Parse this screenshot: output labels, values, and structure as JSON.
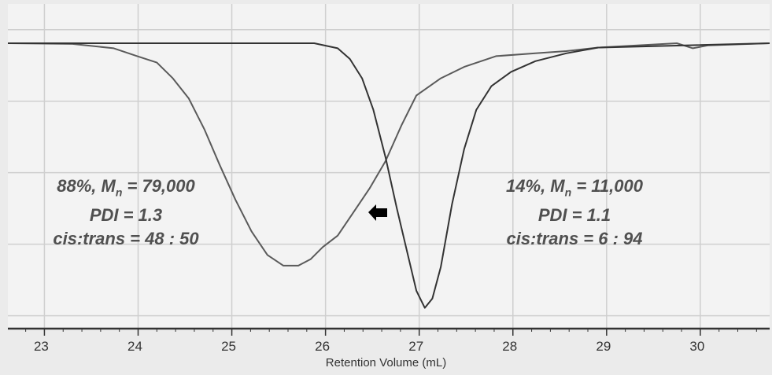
{
  "chart_data": {
    "type": "line",
    "title": "",
    "xlabel": "Retention Volume (mL)",
    "ylabel": "",
    "xlim": [
      22.61,
      30.74
    ],
    "ylim": [
      -0.18,
      4.36
    ],
    "xticks": [
      "23",
      "24",
      "25",
      "26",
      "27",
      "28",
      "29",
      "30"
    ],
    "grid": true,
    "legend": "none",
    "series": [
      {
        "color": "#5a5a5a",
        "points": [
          [
            22.61,
            3.81
          ],
          [
            23.3,
            3.8
          ],
          [
            23.74,
            3.74
          ],
          [
            23.99,
            3.63
          ],
          [
            24.2,
            3.54
          ],
          [
            24.37,
            3.32
          ],
          [
            24.54,
            3.04
          ],
          [
            24.71,
            2.6
          ],
          [
            24.87,
            2.11
          ],
          [
            25.04,
            1.62
          ],
          [
            25.21,
            1.18
          ],
          [
            25.38,
            0.85
          ],
          [
            25.55,
            0.7
          ],
          [
            25.71,
            0.7
          ],
          [
            25.84,
            0.79
          ],
          [
            25.97,
            0.96
          ],
          [
            26.13,
            1.12
          ],
          [
            26.3,
            1.45
          ],
          [
            26.47,
            1.78
          ],
          [
            26.64,
            2.16
          ],
          [
            26.81,
            2.66
          ],
          [
            26.97,
            3.08
          ],
          [
            27.23,
            3.32
          ],
          [
            27.48,
            3.48
          ],
          [
            27.82,
            3.63
          ],
          [
            28.24,
            3.67
          ],
          [
            28.57,
            3.7
          ],
          [
            28.91,
            3.75
          ],
          [
            29.75,
            3.81
          ],
          [
            29.92,
            3.74
          ],
          [
            30.08,
            3.78
          ],
          [
            30.74,
            3.81
          ]
        ]
      },
      {
        "color": "#333333",
        "points": [
          [
            22.61,
            3.81
          ],
          [
            25.88,
            3.81
          ],
          [
            26.13,
            3.74
          ],
          [
            26.26,
            3.59
          ],
          [
            26.39,
            3.32
          ],
          [
            26.51,
            2.88
          ],
          [
            26.64,
            2.22
          ],
          [
            26.76,
            1.51
          ],
          [
            26.89,
            0.79
          ],
          [
            26.97,
            0.35
          ],
          [
            27.06,
            0.11
          ],
          [
            27.14,
            0.24
          ],
          [
            27.23,
            0.68
          ],
          [
            27.35,
            1.56
          ],
          [
            27.48,
            2.33
          ],
          [
            27.61,
            2.88
          ],
          [
            27.77,
            3.21
          ],
          [
            27.98,
            3.41
          ],
          [
            28.24,
            3.56
          ],
          [
            28.57,
            3.67
          ],
          [
            28.91,
            3.75
          ],
          [
            30.74,
            3.81
          ]
        ]
      }
    ],
    "annotations": {
      "left": {
        "line1_pre": "88%, M",
        "line1_sub": "n",
        "line1_post": " = 79,000",
        "line2": "PDI = 1.3",
        "line3": "cis:trans = 48 : 50"
      },
      "right": {
        "line1_pre": "14%, M",
        "line1_sub": "n",
        "line1_post": " = 11,000",
        "line2": "PDI = 1.1",
        "line3": "cis:trans = 6 : 94"
      },
      "arrow": "left-arrow-icon"
    },
    "colors": {
      "plot_bg": "#f3f3f3",
      "grid": "#cfcfcf",
      "axis": "#333333"
    }
  }
}
